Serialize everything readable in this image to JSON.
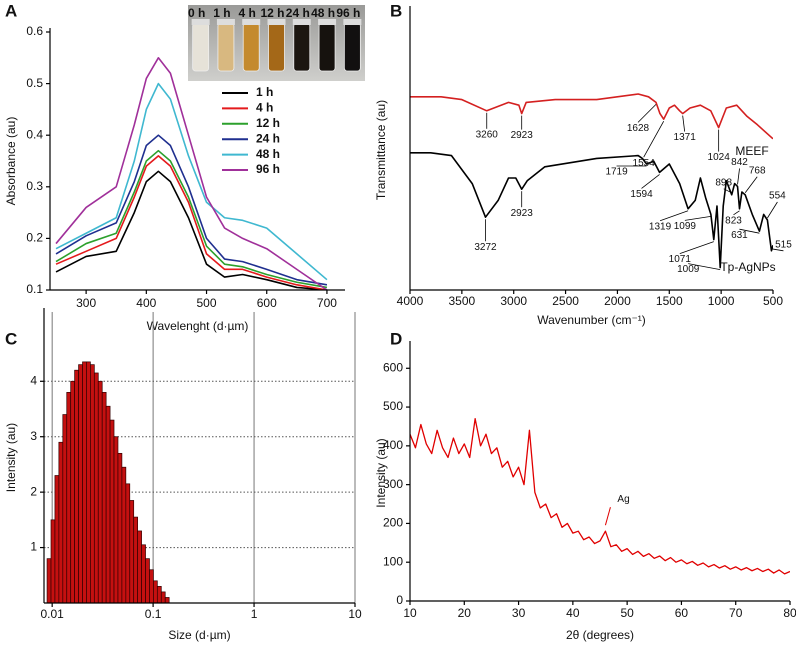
{
  "chart_data": [
    {
      "panel": "A",
      "type": "line",
      "x_title": "Wavelenght (d·µm)",
      "y_title": "Absorbance (au)",
      "x": [
        250,
        300,
        350,
        380,
        400,
        420,
        440,
        470,
        500,
        530,
        560,
        600,
        650,
        700
      ],
      "xlim": [
        240,
        730
      ],
      "xticks": [
        300,
        400,
        500,
        600,
        700
      ],
      "ylim": [
        0.1,
        0.6
      ],
      "yticks": [
        0.1,
        0.2,
        0.3,
        0.4,
        0.5,
        0.6
      ],
      "legend": "upper right",
      "inset_labels": [
        "0 h",
        "1 h",
        "4 h",
        "12 h",
        "24 h",
        "48 h",
        "96 h"
      ],
      "series": [
        {
          "name": "1 h",
          "color": "#000000",
          "values": [
            0.135,
            0.165,
            0.175,
            0.25,
            0.31,
            0.33,
            0.31,
            0.24,
            0.15,
            0.125,
            0.13,
            0.12,
            0.105,
            0.1
          ]
        },
        {
          "name": "4 h",
          "color": "#e41a1c",
          "values": [
            0.15,
            0.175,
            0.2,
            0.28,
            0.34,
            0.36,
            0.34,
            0.27,
            0.17,
            0.14,
            0.14,
            0.125,
            0.11,
            0.1
          ]
        },
        {
          "name": "12 h",
          "color": "#2ca02c",
          "values": [
            0.155,
            0.19,
            0.21,
            0.29,
            0.35,
            0.37,
            0.35,
            0.28,
            0.185,
            0.15,
            0.145,
            0.13,
            0.115,
            0.105
          ]
        },
        {
          "name": "24 h",
          "color": "#1f2f8f",
          "values": [
            0.17,
            0.205,
            0.23,
            0.31,
            0.38,
            0.4,
            0.38,
            0.3,
            0.2,
            0.16,
            0.155,
            0.14,
            0.12,
            0.11
          ]
        },
        {
          "name": "48 h",
          "color": "#3fb8d0",
          "values": [
            0.18,
            0.21,
            0.24,
            0.35,
            0.45,
            0.5,
            0.47,
            0.36,
            0.27,
            0.24,
            0.235,
            0.22,
            0.17,
            0.12
          ]
        },
        {
          "name": "96 h",
          "color": "#a0309a",
          "values": [
            0.19,
            0.26,
            0.3,
            0.42,
            0.51,
            0.55,
            0.52,
            0.4,
            0.28,
            0.22,
            0.2,
            0.18,
            0.14,
            0.1
          ]
        }
      ]
    },
    {
      "panel": "B",
      "type": "line",
      "x_title": "Wavenumber (cm⁻¹)",
      "y_title": "Transmittance (au)",
      "xlim": [
        4000,
        500
      ],
      "xticks": [
        4000,
        3500,
        3000,
        2500,
        2000,
        1500,
        1000,
        500
      ],
      "ylim": [
        0,
        100
      ],
      "legend": "inline",
      "series": [
        {
          "name": "MEEF",
          "color": "#d42020",
          "x": [
            4000,
            3700,
            3500,
            3260,
            3050,
            2950,
            2923,
            2880,
            2600,
            2200,
            1800,
            1700,
            1628,
            1590,
            1554,
            1500,
            1450,
            1400,
            1371,
            1300,
            1200,
            1100,
            1024,
            950,
            850,
            750,
            650,
            500
          ],
          "values": [
            69,
            69,
            68,
            64,
            67,
            66,
            63,
            67,
            68,
            68,
            70,
            69,
            67,
            63,
            61,
            65,
            66,
            64,
            63,
            65,
            66,
            64,
            58,
            65,
            66,
            62,
            59,
            54
          ],
          "peaks": [
            3260,
            2923,
            1628,
            1554,
            1371,
            1024
          ]
        },
        {
          "name": "Tp-AgNPs",
          "color": "#000000",
          "x": [
            4000,
            3800,
            3600,
            3400,
            3272,
            3150,
            3050,
            2980,
            2923,
            2870,
            2700,
            2200,
            1800,
            1760,
            1719,
            1650,
            1594,
            1500,
            1400,
            1319,
            1250,
            1200,
            1150,
            1099,
            1071,
            1040,
            1009,
            980,
            950,
            898,
            870,
            842,
            823,
            800,
            768,
            700,
            631,
            590,
            554,
            515,
            500
          ],
          "values": [
            49,
            49,
            48,
            38,
            26,
            32,
            40,
            40,
            36,
            39,
            44,
            47,
            48,
            47,
            45,
            46,
            42,
            45,
            38,
            29,
            32,
            40,
            33,
            27,
            18,
            30,
            8,
            30,
            39,
            34,
            38,
            37,
            29,
            35,
            34,
            27,
            21,
            27,
            25,
            14,
            16
          ],
          "peaks": [
            3272,
            2923,
            1719,
            1594,
            1319,
            1099,
            1071,
            1009,
            898,
            842,
            823,
            768,
            631,
            554,
            515
          ]
        }
      ]
    },
    {
      "panel": "C",
      "type": "histogram",
      "x_title": "Size (d·µm)",
      "y_title": "Intensity (au)",
      "log_x": true,
      "grid": true,
      "color": "#c41010",
      "xlim": [
        0.0083,
        10
      ],
      "xticks": [
        0.01,
        0.1,
        1,
        10
      ],
      "ylim": [
        0,
        5.25
      ],
      "yticks": [
        1,
        2,
        3,
        4
      ],
      "bins": [
        0.0089,
        0.00974,
        0.01065,
        0.01165,
        0.01275,
        0.01395,
        0.01526,
        0.01669,
        0.01826,
        0.01998,
        0.02186,
        0.02391,
        0.02616,
        0.02862,
        0.03131,
        0.03425,
        0.03747,
        0.04099,
        0.04485,
        0.04906,
        0.05368,
        0.05872,
        0.06424,
        0.07028,
        0.07689,
        0.08412,
        0.09203,
        0.1007,
        0.1101,
        0.1205,
        0.1318,
        0.1442
      ],
      "values": [
        0.8,
        1.5,
        2.3,
        2.9,
        3.4,
        3.8,
        4.0,
        4.2,
        4.3,
        4.35,
        4.35,
        4.3,
        4.15,
        4.0,
        3.8,
        3.55,
        3.3,
        3.0,
        2.7,
        2.45,
        2.15,
        1.85,
        1.55,
        1.3,
        1.05,
        0.8,
        0.6,
        0.4,
        0.3,
        0.2,
        0.1
      ]
    },
    {
      "panel": "D",
      "type": "line",
      "x_title": "2θ (degrees)",
      "y_title": "Intensity (au)",
      "color": "#e00000",
      "xlim": [
        10,
        80
      ],
      "xticks": [
        10,
        20,
        30,
        40,
        50,
        60,
        70,
        80
      ],
      "ylim": [
        0,
        660
      ],
      "yticks": [
        0,
        100,
        200,
        300,
        400,
        500,
        600
      ],
      "x": [
        10,
        11,
        12,
        13,
        14,
        15,
        16,
        17,
        18,
        19,
        20,
        21,
        22,
        23,
        24,
        25,
        26,
        27,
        28,
        29,
        30,
        31,
        32,
        33,
        34,
        35,
        36,
        37,
        38,
        39,
        40,
        41,
        42,
        43,
        44,
        45,
        46,
        47,
        48,
        49,
        50,
        51,
        52,
        53,
        54,
        55,
        56,
        57,
        58,
        59,
        60,
        61,
        62,
        63,
        64,
        65,
        66,
        67,
        68,
        69,
        70,
        71,
        72,
        73,
        74,
        75,
        76,
        77,
        78,
        79,
        80
      ],
      "values": [
        430,
        395,
        455,
        405,
        380,
        440,
        395,
        370,
        420,
        380,
        405,
        370,
        470,
        400,
        430,
        380,
        395,
        345,
        360,
        320,
        345,
        300,
        440,
        280,
        240,
        250,
        215,
        225,
        190,
        200,
        175,
        180,
        158,
        165,
        148,
        155,
        180,
        140,
        145,
        128,
        135,
        120,
        128,
        115,
        122,
        110,
        116,
        104,
        112,
        100,
        106,
        96,
        102,
        92,
        98,
        88,
        94,
        85,
        91,
        82,
        88,
        80,
        86,
        78,
        84,
        76,
        82,
        72,
        80,
        70,
        76
      ],
      "annotations": [
        {
          "text": "Ag",
          "x": 46
        }
      ]
    }
  ]
}
